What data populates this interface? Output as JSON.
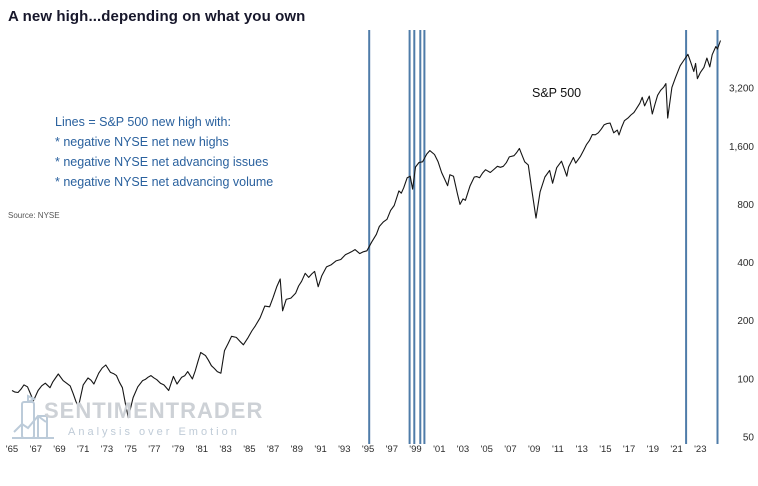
{
  "title": "A new high...depending on what you own",
  "annotation": {
    "lines": [
      "Lines = S&P 500 new high with:",
      "* negative NYSE net new highs",
      "* negative NYSE net advancing issues",
      "* negative NYSE net advancing volume"
    ],
    "color": "#2a619e"
  },
  "series_label": "S&P 500",
  "source": "Source: NYSE",
  "watermark": {
    "name": "SENTIMENTRADER",
    "tagline": "Analysis over Emotion"
  },
  "chart_data": {
    "type": "line",
    "title": "A new high...depending on what you own",
    "xlabel": "",
    "ylabel": "",
    "yscale": "log",
    "grid": false,
    "legend": "none",
    "xlim": [
      1964.66,
      2025.5
    ],
    "ylim": [
      50,
      6400
    ],
    "line_color": "#151515",
    "event_line_color": "#4f7ca9",
    "x_ticks": [
      1965,
      1967,
      1969,
      1971,
      1973,
      1975,
      1977,
      1979,
      1981,
      1983,
      1985,
      1987,
      1989,
      1991,
      1993,
      1995,
      1997,
      1999,
      2001,
      2003,
      2005,
      2007,
      2009,
      2011,
      2013,
      2015,
      2017,
      2019,
      2021,
      2023
    ],
    "x_tick_labels": [
      "'65",
      "'67",
      "'69",
      "'71",
      "'73",
      "'75",
      "'77",
      "'79",
      "'81",
      "'83",
      "'85",
      "'87",
      "'89",
      "'91",
      "'93",
      "'95",
      "'97",
      "'99",
      "'01",
      "'03",
      "'05",
      "'07",
      "'09",
      "'11",
      "'13",
      "'15",
      "'17",
      "'19",
      "'21",
      "'23"
    ],
    "y_ticks": [
      3200,
      1600,
      800,
      400,
      200,
      100,
      50
    ],
    "y_tick_labels": [
      "3,200",
      "1,600",
      "800",
      "400",
      "200",
      "100",
      "50"
    ],
    "event_line_years": [
      1995.1,
      1998.5,
      1998.9,
      1999.4,
      1999.75,
      2021.8,
      2024.45
    ],
    "series": [
      {
        "name": "S&P 500",
        "points": [
          [
            1965.0,
            87
          ],
          [
            1965.5,
            85
          ],
          [
            1966.0,
            93
          ],
          [
            1966.3,
            91
          ],
          [
            1966.8,
            77
          ],
          [
            1967.2,
            87
          ],
          [
            1967.8,
            95
          ],
          [
            1968.2,
            90
          ],
          [
            1968.9,
            106
          ],
          [
            1969.3,
            98
          ],
          [
            1969.9,
            92
          ],
          [
            1970.4,
            76
          ],
          [
            1970.6,
            72
          ],
          [
            1971.0,
            93
          ],
          [
            1971.4,
            101
          ],
          [
            1971.9,
            94
          ],
          [
            1972.3,
            107
          ],
          [
            1972.9,
            118
          ],
          [
            1973.3,
            108
          ],
          [
            1973.8,
            104
          ],
          [
            1974.3,
            90
          ],
          [
            1974.8,
            63
          ],
          [
            1975.2,
            80
          ],
          [
            1975.6,
            91
          ],
          [
            1976.0,
            98
          ],
          [
            1976.7,
            104
          ],
          [
            1977.2,
            99
          ],
          [
            1977.8,
            93
          ],
          [
            1978.2,
            87
          ],
          [
            1978.6,
            103
          ],
          [
            1978.9,
            94
          ],
          [
            1979.3,
            102
          ],
          [
            1979.8,
            109
          ],
          [
            1980.2,
            100
          ],
          [
            1980.9,
            137
          ],
          [
            1981.3,
            132
          ],
          [
            1981.8,
            117
          ],
          [
            1982.3,
            109
          ],
          [
            1982.6,
            107
          ],
          [
            1982.9,
            140
          ],
          [
            1983.5,
            166
          ],
          [
            1983.9,
            164
          ],
          [
            1984.5,
            150
          ],
          [
            1984.9,
            164
          ],
          [
            1985.5,
            188
          ],
          [
            1985.9,
            207
          ],
          [
            1986.3,
            238
          ],
          [
            1986.7,
            236
          ],
          [
            1987.0,
            264
          ],
          [
            1987.6,
            329
          ],
          [
            1987.8,
            225
          ],
          [
            1988.1,
            258
          ],
          [
            1988.5,
            262
          ],
          [
            1988.9,
            278
          ],
          [
            1989.4,
            320
          ],
          [
            1989.7,
            352
          ],
          [
            1990.0,
            335
          ],
          [
            1990.5,
            360
          ],
          [
            1990.8,
            300
          ],
          [
            1991.1,
            342
          ],
          [
            1991.5,
            380
          ],
          [
            1991.9,
            390
          ],
          [
            1992.3,
            408
          ],
          [
            1992.7,
            415
          ],
          [
            1993.1,
            440
          ],
          [
            1993.6,
            455
          ],
          [
            1993.9,
            467
          ],
          [
            1994.3,
            445
          ],
          [
            1994.6,
            455
          ],
          [
            1994.9,
            460
          ],
          [
            1995.3,
            510
          ],
          [
            1995.7,
            560
          ],
          [
            1995.95,
            615
          ],
          [
            1996.3,
            650
          ],
          [
            1996.6,
            670
          ],
          [
            1996.9,
            745
          ],
          [
            1997.2,
            790
          ],
          [
            1997.6,
            940
          ],
          [
            1997.8,
            915
          ],
          [
            1998.0,
            975
          ],
          [
            1998.3,
            1100
          ],
          [
            1998.55,
            1120
          ],
          [
            1998.75,
            960
          ],
          [
            1999.0,
            1250
          ],
          [
            1999.3,
            1320
          ],
          [
            1999.6,
            1330
          ],
          [
            1999.95,
            1460
          ],
          [
            2000.2,
            1520
          ],
          [
            2000.6,
            1450
          ],
          [
            2000.9,
            1330
          ],
          [
            2001.2,
            1170
          ],
          [
            2001.7,
            1000
          ],
          [
            2001.9,
            1140
          ],
          [
            2002.2,
            1120
          ],
          [
            2002.55,
            900
          ],
          [
            2002.75,
            800
          ],
          [
            2003.0,
            855
          ],
          [
            2003.2,
            840
          ],
          [
            2003.6,
            1000
          ],
          [
            2003.95,
            1110
          ],
          [
            2004.4,
            1100
          ],
          [
            2004.9,
            1210
          ],
          [
            2005.3,
            1170
          ],
          [
            2005.9,
            1260
          ],
          [
            2006.4,
            1260
          ],
          [
            2006.9,
            1410
          ],
          [
            2007.3,
            1430
          ],
          [
            2007.75,
            1560
          ],
          [
            2007.9,
            1480
          ],
          [
            2008.2,
            1330
          ],
          [
            2008.5,
            1280
          ],
          [
            2008.8,
            950
          ],
          [
            2009.15,
            680
          ],
          [
            2009.5,
            930
          ],
          [
            2009.9,
            1110
          ],
          [
            2010.3,
            1200
          ],
          [
            2010.55,
            1030
          ],
          [
            2010.9,
            1240
          ],
          [
            2011.3,
            1340
          ],
          [
            2011.75,
            1120
          ],
          [
            2011.9,
            1250
          ],
          [
            2012.3,
            1400
          ],
          [
            2012.5,
            1310
          ],
          [
            2012.9,
            1420
          ],
          [
            2013.4,
            1630
          ],
          [
            2013.9,
            1840
          ],
          [
            2014.4,
            1880
          ],
          [
            2014.9,
            2070
          ],
          [
            2015.4,
            2110
          ],
          [
            2015.7,
            1880
          ],
          [
            2016.0,
            1940
          ],
          [
            2016.15,
            1830
          ],
          [
            2016.6,
            2170
          ],
          [
            2016.9,
            2240
          ],
          [
            2017.4,
            2390
          ],
          [
            2017.9,
            2670
          ],
          [
            2018.1,
            2870
          ],
          [
            2018.3,
            2590
          ],
          [
            2018.7,
            2910
          ],
          [
            2018.95,
            2350
          ],
          [
            2019.4,
            2940
          ],
          [
            2019.9,
            3230
          ],
          [
            2020.1,
            3380
          ],
          [
            2020.25,
            2240
          ],
          [
            2020.6,
            3230
          ],
          [
            2020.9,
            3620
          ],
          [
            2021.3,
            4180
          ],
          [
            2021.6,
            4450
          ],
          [
            2021.95,
            4790
          ],
          [
            2022.2,
            4350
          ],
          [
            2022.45,
            3900
          ],
          [
            2022.6,
            4300
          ],
          [
            2022.75,
            3580
          ],
          [
            2023.0,
            3850
          ],
          [
            2023.3,
            4100
          ],
          [
            2023.55,
            4580
          ],
          [
            2023.8,
            4120
          ],
          [
            2024.0,
            4770
          ],
          [
            2024.3,
            5250
          ],
          [
            2024.45,
            5100
          ],
          [
            2024.7,
            5650
          ]
        ]
      }
    ]
  }
}
